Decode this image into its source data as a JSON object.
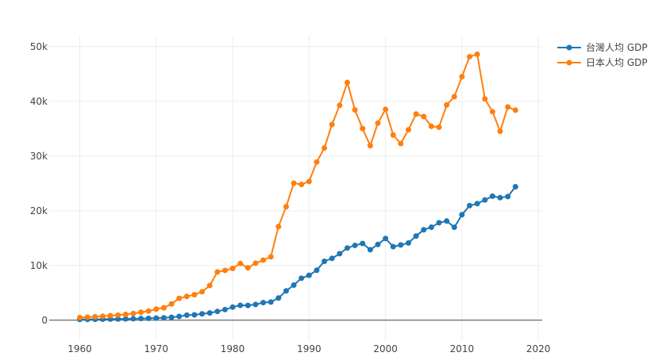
{
  "chart_data": {
    "type": "line",
    "title": "",
    "xlabel": "",
    "ylabel": "",
    "xlim": [
      1956,
      2020.5
    ],
    "ylim": [
      -3800,
      52000
    ],
    "grid": true,
    "legend_position": "top-right",
    "x_ticks": [
      1960,
      1970,
      1980,
      1990,
      2000,
      2010,
      2020
    ],
    "x_tick_labels": [
      "1960",
      "1970",
      "1980",
      "1990",
      "2000",
      "2010",
      "2020"
    ],
    "y_ticks": [
      0,
      10000,
      20000,
      30000,
      40000,
      50000
    ],
    "y_tick_labels": [
      "0",
      "10k",
      "20k",
      "30k",
      "40k",
      "50k"
    ],
    "x": [
      1960,
      1961,
      1962,
      1963,
      1964,
      1965,
      1966,
      1967,
      1968,
      1969,
      1970,
      1971,
      1972,
      1973,
      1974,
      1975,
      1976,
      1977,
      1978,
      1979,
      1980,
      1981,
      1982,
      1983,
      1984,
      1985,
      1986,
      1987,
      1988,
      1989,
      1990,
      1991,
      1992,
      1993,
      1994,
      1995,
      1996,
      1997,
      1998,
      1999,
      2000,
      2001,
      2002,
      2003,
      2004,
      2005,
      2006,
      2007,
      2008,
      2009,
      2010,
      2011,
      2012,
      2013,
      2014,
      2015,
      2016,
      2017
    ],
    "series": [
      {
        "name": "台灣人均 GDP",
        "color": "#1f77b4",
        "values": [
          154,
          151,
          162,
          180,
          204,
          217,
          237,
          268,
          304,
          345,
          393,
          447,
          527,
          698,
          931,
          978,
          1162,
          1324,
          1607,
          1935,
          2389,
          2721,
          2703,
          2879,
          3220,
          3321,
          4061,
          5359,
          6423,
          7677,
          8205,
          9139,
          10768,
          11304,
          12160,
          13201,
          13673,
          14032,
          12887,
          13846,
          14941,
          13448,
          13750,
          14111,
          15387,
          16532,
          16999,
          17814,
          18131,
          16988,
          19278,
          20939,
          21308,
          21974,
          22668,
          22400,
          22592,
          24389
        ]
      },
      {
        "name": "日本人均 GDP",
        "color": "#ff7f0e",
        "values": [
          479,
          564,
          634,
          717,
          836,
          919,
          1058,
          1229,
          1451,
          1669,
          2037,
          2272,
          2967,
          3997,
          4354,
          4659,
          5198,
          6335,
          8821,
          9105,
          9463,
          10361,
          9578,
          10425,
          10984,
          11585,
          17112,
          20745,
          25051,
          24813,
          25359,
          28925,
          31465,
          35766,
          39269,
          43440,
          38437,
          35022,
          31903,
          36027,
          38532,
          33846,
          32289,
          34808,
          37689,
          37218,
          35434,
          35275,
          39339,
          40855,
          44508,
          48168,
          48603,
          40454,
          38109,
          34524,
          38972,
          38387
        ]
      }
    ]
  }
}
